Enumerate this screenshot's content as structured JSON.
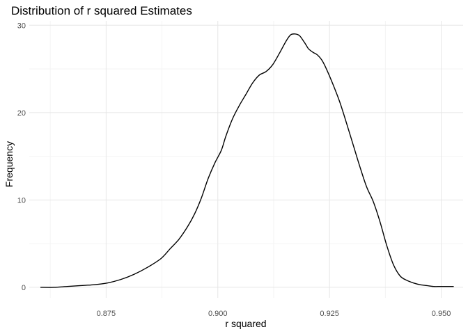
{
  "chart_data": {
    "type": "line",
    "title": "Distribution of r squared Estimates",
    "xlabel": "r squared",
    "ylabel": "Frequency",
    "xlim": [
      0.8578,
      0.9549
    ],
    "ylim": [
      -1.2,
      30.5
    ],
    "x_ticks": [
      0.875,
      0.9,
      0.925,
      0.95
    ],
    "x_tick_labels": [
      "0.875",
      "0.900",
      "0.925",
      "0.950"
    ],
    "y_ticks": [
      0,
      10,
      20,
      30
    ],
    "y_tick_labels": [
      "0",
      "10",
      "20",
      "30"
    ],
    "grid": true,
    "legend": "none",
    "series": [
      {
        "x": [
          0.8603,
          0.8633,
          0.8663,
          0.8693,
          0.8723,
          0.8753,
          0.8783,
          0.8813,
          0.8843,
          0.8873,
          0.8893,
          0.8913,
          0.8933,
          0.8948,
          0.8963,
          0.8978,
          0.8993,
          0.9008,
          0.9018,
          0.9033,
          0.9048,
          0.9063,
          0.9078,
          0.9093,
          0.9108,
          0.9123,
          0.9138,
          0.9153,
          0.9163,
          0.9173,
          0.9183,
          0.9193,
          0.9198,
          0.9203,
          0.9213,
          0.9223,
          0.9233,
          0.9243,
          0.9258,
          0.9273,
          0.9288,
          0.9303,
          0.9318,
          0.9333,
          0.9348,
          0.9363,
          0.9378,
          0.9393,
          0.9408,
          0.9423,
          0.9438,
          0.9453,
          0.9468,
          0.9483,
          0.9498,
          0.9513,
          0.9528
        ],
        "y": [
          0.0,
          0.0,
          0.1,
          0.2,
          0.3,
          0.5,
          0.9,
          1.5,
          2.3,
          3.3,
          4.4,
          5.5,
          7.0,
          8.4,
          10.2,
          12.4,
          14.2,
          15.7,
          17.3,
          19.3,
          20.8,
          22.1,
          23.4,
          24.3,
          24.7,
          25.5,
          26.8,
          28.2,
          28.9,
          29.0,
          28.8,
          28.1,
          27.7,
          27.3,
          26.9,
          26.6,
          26.0,
          25.0,
          23.2,
          21.2,
          18.8,
          16.3,
          13.8,
          11.5,
          9.8,
          7.5,
          4.8,
          2.6,
          1.3,
          0.8,
          0.5,
          0.3,
          0.2,
          0.1,
          0.1,
          0.1,
          0.1
        ]
      }
    ]
  }
}
